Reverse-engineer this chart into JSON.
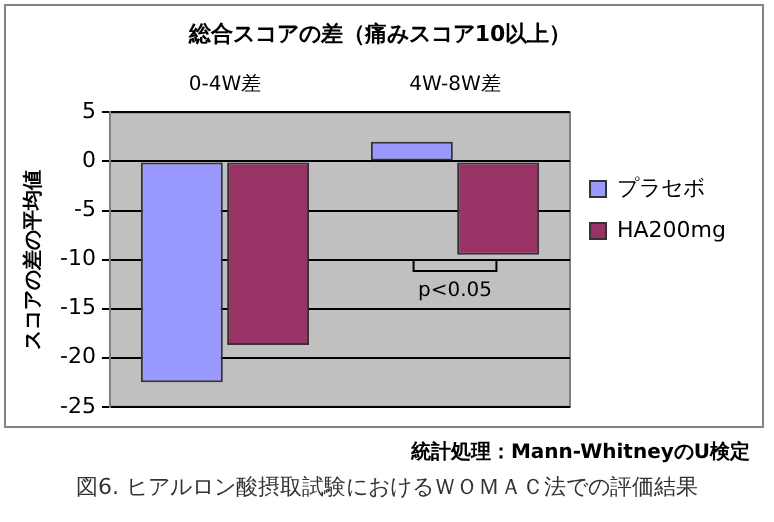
{
  "chart_data": {
    "type": "bar",
    "title": "総合スコアの差（痛みスコア10以上）",
    "ylabel": "スコアの差の平均値",
    "categories": [
      "0-4W差",
      "4W-8W差"
    ],
    "series": [
      {
        "name": "プラセボ",
        "color": "#9999ff",
        "values": [
          -22.5,
          2.0
        ]
      },
      {
        "name": "HA200mg",
        "color": "#993366",
        "values": [
          -18.7,
          -9.5
        ]
      }
    ],
    "ylim": [
      -25,
      5
    ],
    "yticks": [
      -25,
      -20,
      -15,
      -10,
      -5,
      0,
      5
    ],
    "grid": "y",
    "legend": "right",
    "annotations": [
      "p<0.05",
      "統計処理：Mann-WhitneyのU検定",
      "図6. ヒアルロン酸摂取試験におけるＷＯＭＡＣ法での評価結果"
    ]
  }
}
